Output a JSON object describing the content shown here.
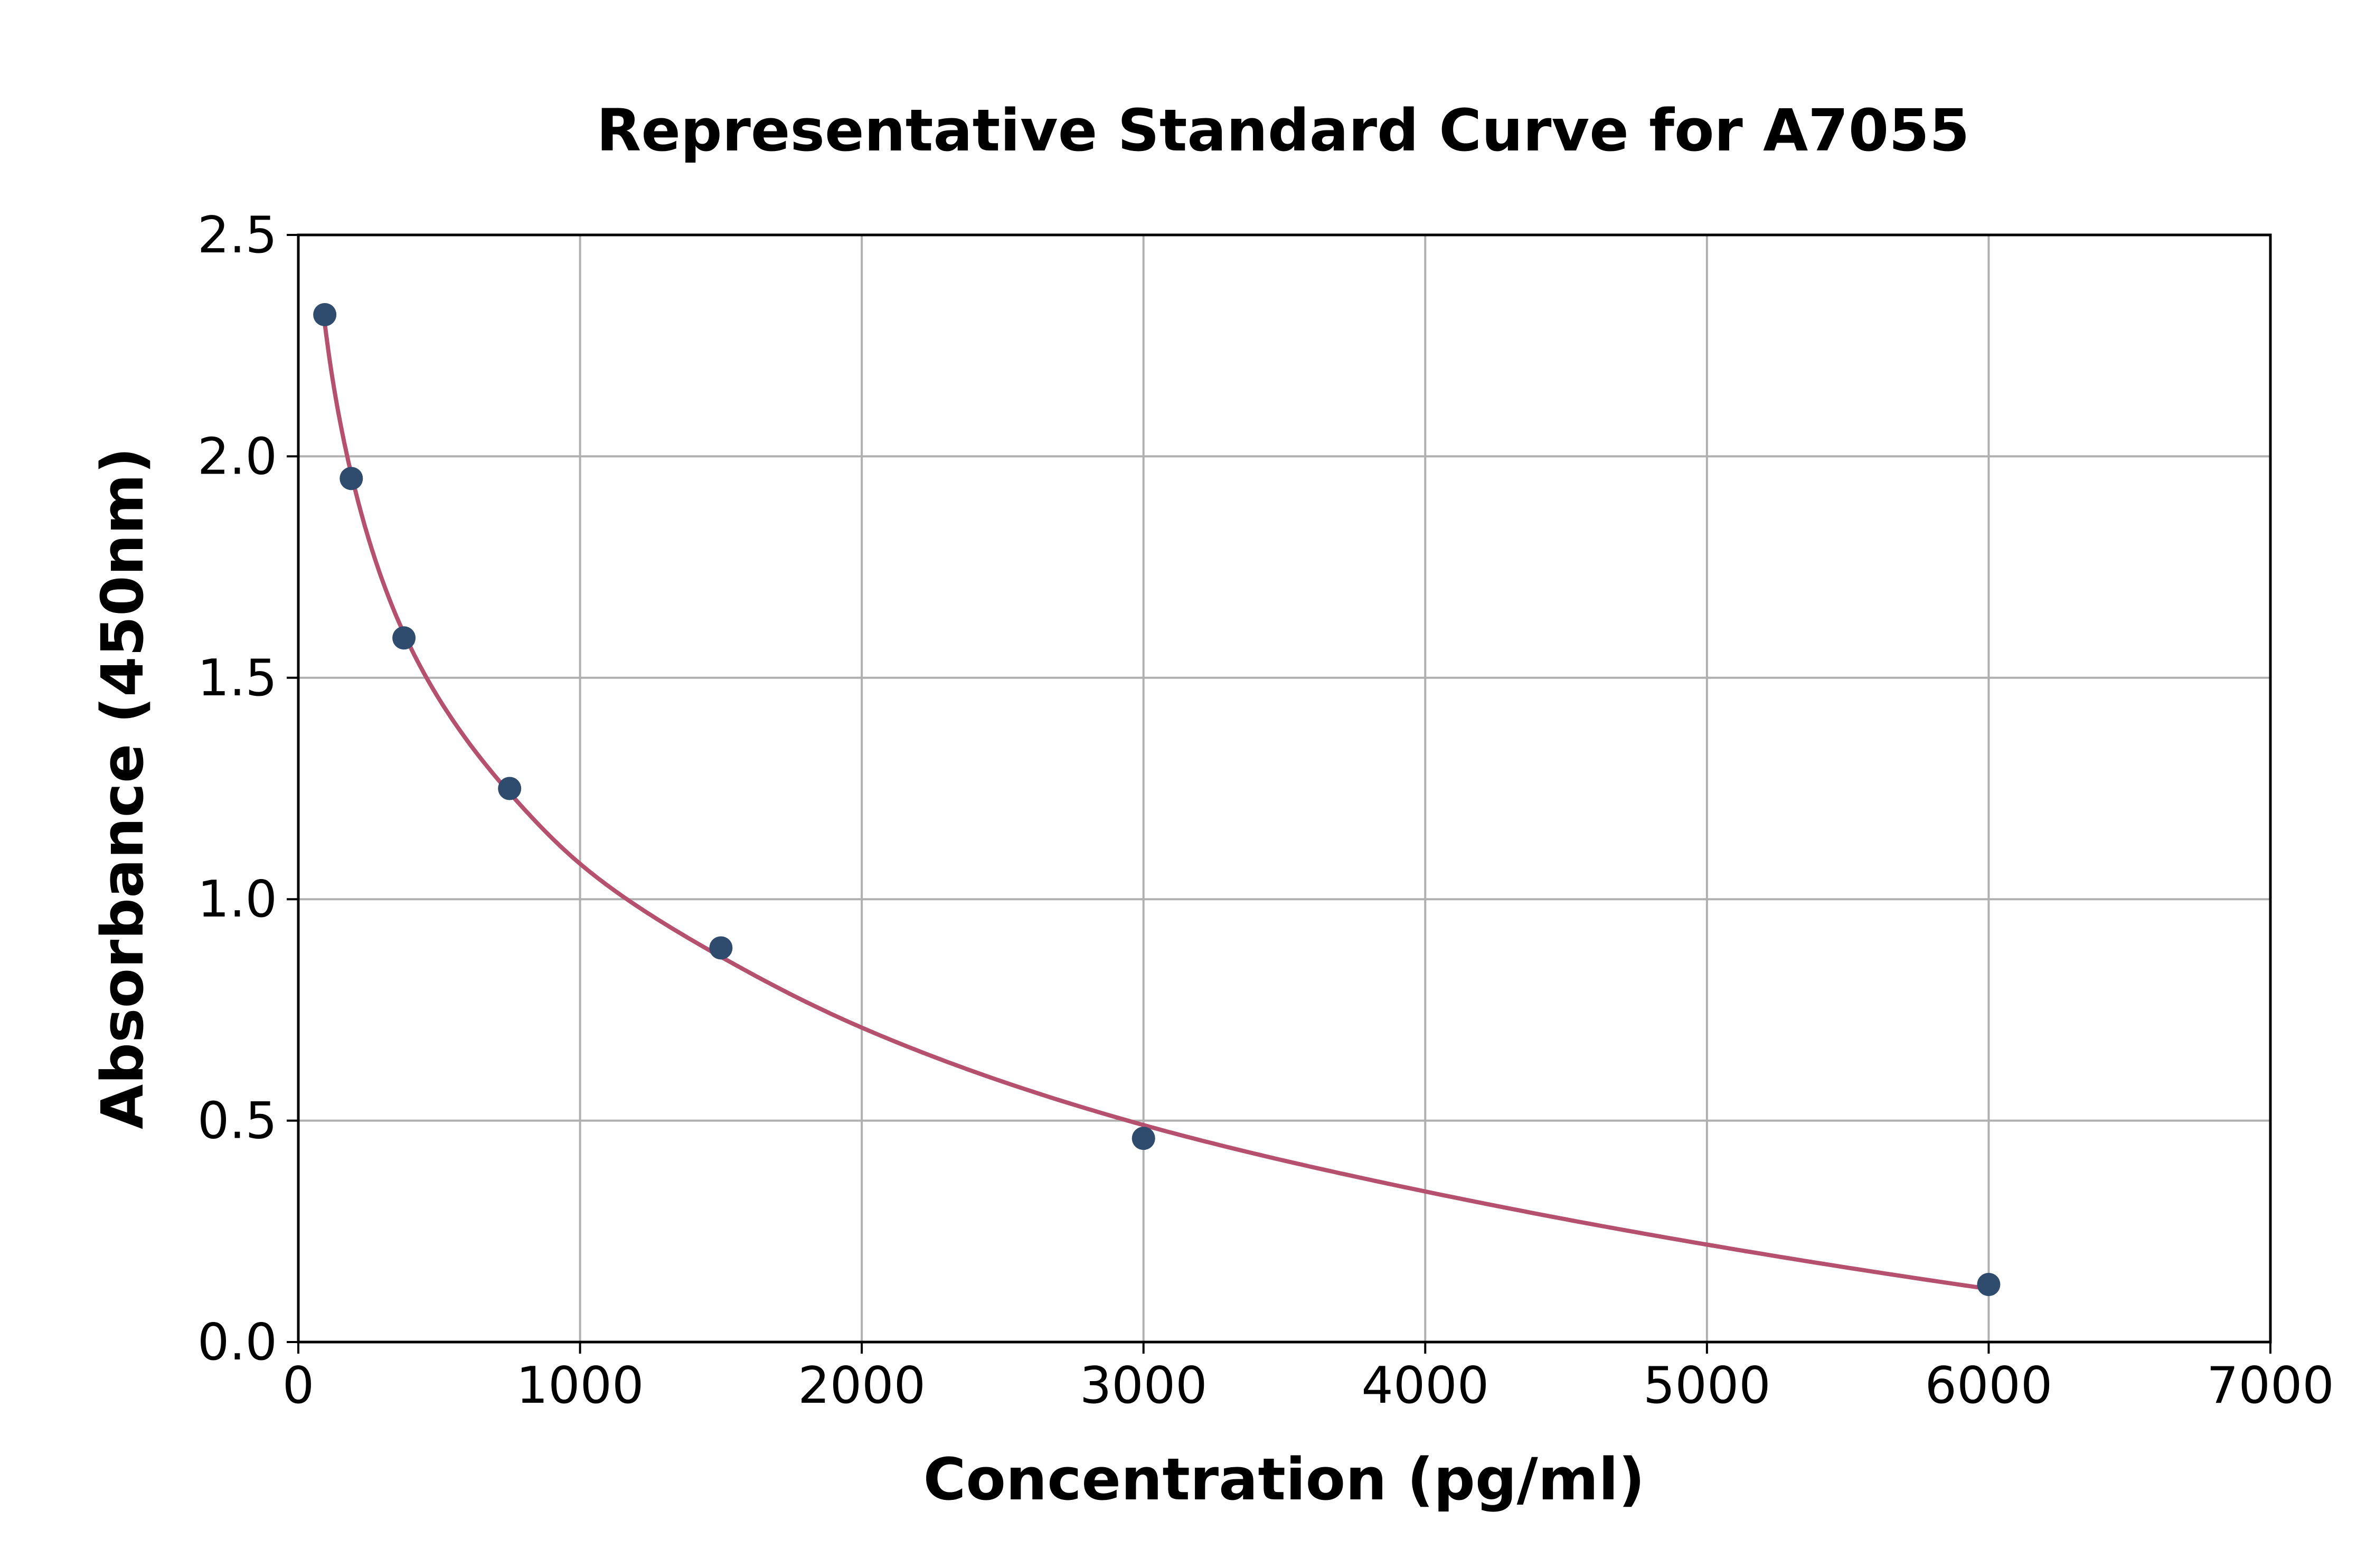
{
  "chart_data": {
    "type": "scatter",
    "title": "Representative Standard Curve for A7055",
    "xlabel": "Concentration (pg/ml)",
    "ylabel": "Absorbance (450nm)",
    "xlim": [
      0,
      7000
    ],
    "ylim": [
      0,
      2.5
    ],
    "x_ticks": [
      "0",
      "1000",
      "2000",
      "3000",
      "4000",
      "5000",
      "6000",
      "7000"
    ],
    "y_ticks": [
      "0.0",
      "0.5",
      "1.0",
      "1.5",
      "2.0",
      "2.5"
    ],
    "grid": true,
    "series": [
      {
        "kind": "points",
        "color": "#2f4b6e",
        "x": [
          94,
          188,
          375,
          750,
          1500,
          3000,
          6000
        ],
        "y": [
          2.32,
          1.95,
          1.59,
          1.25,
          0.89,
          0.46,
          0.13
        ]
      },
      {
        "kind": "fitted_curve",
        "color": "#b5506f",
        "x": [
          94,
          188,
          375,
          750,
          1000,
          1500,
          2000,
          3000,
          4000,
          5000,
          6000
        ],
        "y": [
          2.3,
          1.96,
          1.6,
          1.24,
          1.08,
          0.87,
          0.71,
          0.49,
          0.34,
          0.22,
          0.12
        ]
      }
    ]
  }
}
